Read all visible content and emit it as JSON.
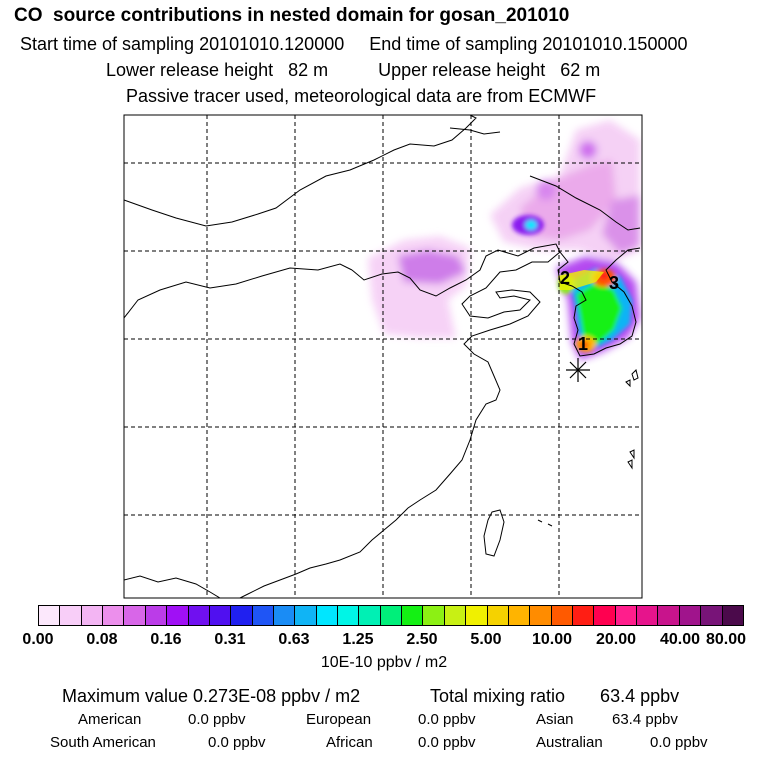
{
  "header": {
    "title": "CO  source contributions in nested domain for gosan_201010",
    "start": "Start time of sampling 20101010.120000",
    "end": "End time of sampling 20101010.150000",
    "lower": "Lower release height   82 m",
    "upper": "Upper release height   62 m",
    "note": "Passive tracer used, meteorological data are from ECMWF"
  },
  "map": {
    "markers": [
      "1",
      "2",
      "3"
    ]
  },
  "colorbar": {
    "colors": [
      "#fce8fc",
      "#f8cef8",
      "#f3b5f3",
      "#ec8fec",
      "#d866e8",
      "#bb3ce8",
      "#a010f5",
      "#7010f0",
      "#5010f0",
      "#2020f0",
      "#1f55f5",
      "#1a8cf5",
      "#10b4f5",
      "#00e6ff",
      "#00f5e6",
      "#00f0b4",
      "#00ef7a",
      "#14f014",
      "#8cf014",
      "#c8f014",
      "#f0f000",
      "#f5d200",
      "#ffb400",
      "#ff8c00",
      "#ff5a00",
      "#ff1e14",
      "#ff0050",
      "#ff1e8c",
      "#e6148c",
      "#c8148c",
      "#a0148c",
      "#781478",
      "#4b0a4b"
    ],
    "ticks": [
      "0.00",
      "0.08",
      "0.16",
      "0.31",
      "0.63",
      "1.25",
      "2.50",
      "5.00",
      "10.00",
      "20.00",
      "40.00",
      "80.00"
    ],
    "unit": "10E-10 ppbv / m2"
  },
  "summary": {
    "max_label": "Maximum value  0.273E-08 ppbv / m2",
    "total_label": "Total mixing ratio       63.4 ppbv",
    "american": "American",
    "american_val": "0.0 ppbv",
    "european": "European",
    "european_val": "0.0 ppbv",
    "asian": "Asian",
    "asian_val": "63.4 ppbv",
    "south_american": "South American",
    "south_american_val": "0.0 ppbv",
    "african": "African",
    "african_val": "0.0 ppbv",
    "australian": "Australian",
    "australian_val": "0.0 ppbv"
  }
}
